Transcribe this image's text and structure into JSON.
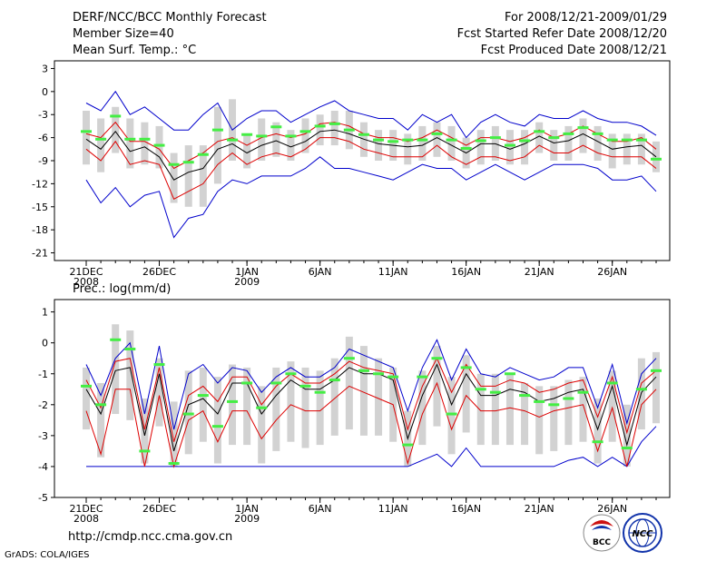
{
  "header": {
    "title": "DERF/NCC/BCC Monthly Forecast",
    "member_size": "Member Size=40",
    "variable": "Mean Surf. Temp.: °C",
    "forecast_period": "For 2008/12/21-2009/01/29",
    "started_refer": "Fcst Started Refer Date 2008/12/20",
    "produced": "Fcst Produced Date 2008/12/21"
  },
  "footer": {
    "url": "http://cmdp.ncc.cma.gov.cn",
    "credit": "GrADS: COLA/IGES",
    "logo_bcc": "BCC",
    "logo_ncc": "NCC"
  },
  "colors": {
    "box": "#d2d2d2",
    "mean": "#000000",
    "upper": "#0000cc",
    "lower": "#dd0000",
    "marker": "#44ee44"
  },
  "chart_data": [
    {
      "type": "box",
      "title": "Mean Surf. Temp.: °C",
      "ylim": [
        -22,
        4
      ],
      "yticks": [
        "3",
        "0",
        "-3",
        "-6",
        "-9",
        "-12",
        "-15",
        "-18",
        "-21"
      ],
      "xlabels": [
        {
          "day": 1,
          "label": "21DEC",
          "sub": "2008"
        },
        {
          "day": 6,
          "label": "26DEC",
          "sub": ""
        },
        {
          "day": 12,
          "label": "1JAN",
          "sub": "2009"
        },
        {
          "day": 17,
          "label": "6JAN",
          "sub": ""
        },
        {
          "day": 22,
          "label": "11JAN",
          "sub": ""
        },
        {
          "day": 27,
          "label": "16JAN",
          "sub": ""
        },
        {
          "day": 32,
          "label": "21JAN",
          "sub": ""
        },
        {
          "day": 37,
          "label": "26JAN",
          "sub": ""
        }
      ],
      "series": [
        {
          "name": "ensemble mean",
          "values": [
            -6.2,
            -7.5,
            -5.2,
            -7.8,
            -7.2,
            -8.5,
            -11.5,
            -10.5,
            -10,
            -7.5,
            -6.8,
            -8,
            -7,
            -6.4,
            -7.2,
            -6.5,
            -5.2,
            -5,
            -5.5,
            -6.2,
            -6.8,
            -7,
            -7.2,
            -7,
            -6,
            -7,
            -8,
            -6.8,
            -6.8,
            -7.5,
            -6.8,
            -5.8,
            -6.7,
            -6.4,
            -5.5,
            -6.5,
            -7.5,
            -7.2,
            -7,
            -8.5
          ]
        },
        {
          "name": "max",
          "values": [
            -1.5,
            -2.5,
            0,
            -3,
            -2,
            -3.5,
            -5,
            -5,
            -3,
            -1.5,
            -5,
            -3.5,
            -2.5,
            -2.5,
            -4,
            -3,
            -2,
            -1.2,
            -2.5,
            -3,
            -3.5,
            -3.5,
            -5,
            -3,
            -4,
            -3,
            -6,
            -4,
            -3,
            -4,
            -4.5,
            -3,
            -3.5,
            -3.5,
            -2.5,
            -3.5,
            -4,
            -4,
            -4.5,
            -5.7
          ]
        },
        {
          "name": "min",
          "values": [
            -11.5,
            -14.5,
            -12.5,
            -15,
            -13.5,
            -13,
            -19,
            -16.5,
            -16,
            -13,
            -11.5,
            -12,
            -11,
            -11,
            -11,
            -10,
            -8.5,
            -10,
            -10,
            -10.5,
            -11,
            -11.5,
            -10.5,
            -9.5,
            -10,
            -10,
            -11.5,
            -10.5,
            -9.5,
            -10.5,
            -11.5,
            -10.5,
            -9.5,
            -9.5,
            -9.5,
            -10,
            -11.5,
            -11.5,
            -11,
            -13
          ]
        },
        {
          "name": "lower",
          "values": [
            -7.5,
            -9,
            -6.5,
            -9.5,
            -9,
            -9.5,
            -14,
            -13,
            -12,
            -9.5,
            -8,
            -9.5,
            -8.5,
            -8,
            -8.5,
            -7.5,
            -6,
            -6,
            -6.5,
            -7.5,
            -8,
            -8.5,
            -8.5,
            -8.5,
            -7,
            -8.5,
            -9.5,
            -8.5,
            -8.5,
            -9,
            -8.5,
            -7,
            -8,
            -8,
            -7,
            -8,
            -8.5,
            -8.5,
            -8.5,
            -10
          ]
        },
        {
          "name": "upper",
          "values": [
            -5.5,
            -6,
            -4,
            -6.5,
            -6.5,
            -7.5,
            -10,
            -9,
            -8,
            -6.5,
            -6,
            -7,
            -6,
            -5.5,
            -6,
            -5.5,
            -4.2,
            -4,
            -4.5,
            -5.5,
            -6,
            -6,
            -6.5,
            -6,
            -5,
            -6,
            -7,
            -6,
            -6,
            -6.5,
            -6,
            -5,
            -6,
            -5.5,
            -4.5,
            -5.5,
            -6.5,
            -6.5,
            -6,
            -7.5
          ]
        },
        {
          "name": "box_high",
          "values": [
            -2.5,
            -3.5,
            -2,
            -3.5,
            -4,
            -4.5,
            -8,
            -7,
            -7,
            -2,
            -1,
            -5.5,
            -3.5,
            -4,
            -5,
            -3.5,
            -3,
            -2.5,
            -2.5,
            -4,
            -5,
            -5,
            -5.5,
            -4.5,
            -4,
            -4.5,
            -6,
            -5,
            -4.5,
            -5,
            -5,
            -4,
            -5,
            -4.5,
            -3.5,
            -4.5,
            -5.5,
            -5.5,
            -5.5,
            -6.5
          ]
        },
        {
          "name": "box_low",
          "values": [
            -9.5,
            -10.5,
            -8,
            -10,
            -9.5,
            -10,
            -14.5,
            -15,
            -15,
            -12,
            -9,
            -10,
            -9,
            -8.5,
            -9,
            -8,
            -7,
            -7,
            -7.5,
            -8.5,
            -9,
            -9,
            -9.5,
            -9,
            -8.5,
            -9,
            -10,
            -9.5,
            -9,
            -9.5,
            -9.5,
            -8,
            -9,
            -9,
            -8,
            -9,
            -10,
            -9.5,
            -9.5,
            -10.5
          ]
        },
        {
          "name": "observed marker",
          "values": [
            -5.2,
            -6.2,
            -3.2,
            -6.2,
            -6.2,
            -7,
            -9.5,
            -9.2,
            -8.2,
            -5,
            -6.3,
            -5.6,
            -5.8,
            -4.6,
            -5.8,
            -5.2,
            -4.5,
            -4.2,
            -5,
            -5.6,
            -6.3,
            -6.5,
            -6.3,
            -6.3,
            -5.5,
            -6.3,
            -7.4,
            -6.4,
            -6,
            -7,
            -6.4,
            -5.2,
            -6,
            -5.5,
            -4.7,
            -5.5,
            -6.3,
            -6.3,
            -6.3,
            -8.8
          ]
        }
      ]
    },
    {
      "type": "box",
      "title": "Prec.: log(mm/d)",
      "ylim": [
        -5,
        1.4
      ],
      "yticks": [
        "1",
        "0",
        "-1",
        "-2",
        "-3",
        "-4",
        "-5"
      ],
      "xlabels": [
        {
          "day": 1,
          "label": "21DEC",
          "sub": "2008"
        },
        {
          "day": 6,
          "label": "26DEC",
          "sub": ""
        },
        {
          "day": 12,
          "label": "1JAN",
          "sub": "2009"
        },
        {
          "day": 17,
          "label": "6JAN",
          "sub": ""
        },
        {
          "day": 22,
          "label": "11JAN",
          "sub": ""
        },
        {
          "day": 27,
          "label": "16JAN",
          "sub": ""
        },
        {
          "day": 32,
          "label": "21JAN",
          "sub": ""
        },
        {
          "day": 37,
          "label": "26JAN",
          "sub": ""
        }
      ],
      "series": [
        {
          "name": "ensemble mean",
          "values": [
            -1.5,
            -2.3,
            -0.9,
            -0.8,
            -3,
            -1,
            -3.5,
            -2,
            -1.8,
            -2.3,
            -1.3,
            -1.3,
            -2.3,
            -1.7,
            -1.2,
            -1.5,
            -1.5,
            -1.2,
            -0.8,
            -1,
            -1,
            -1.2,
            -3.1,
            -1.7,
            -0.7,
            -2,
            -1,
            -1.7,
            -1.7,
            -1.5,
            -1.6,
            -1.9,
            -1.8,
            -1.6,
            -1.5,
            -2.8,
            -1.4,
            -3.3,
            -1.6,
            -1.1
          ]
        },
        {
          "name": "max",
          "values": [
            -0.7,
            -1.7,
            -0.5,
            0,
            -2.3,
            -0.1,
            -2.8,
            -1,
            -0.7,
            -1.3,
            -0.8,
            -0.9,
            -1.6,
            -1.1,
            -0.8,
            -1.1,
            -1.1,
            -0.8,
            -0.2,
            -0.4,
            -0.6,
            -0.8,
            -2.2,
            -0.8,
            0.1,
            -1.2,
            -0.2,
            -1,
            -1.1,
            -0.8,
            -1,
            -1.2,
            -1.1,
            -0.8,
            -0.8,
            -2.1,
            -0.7,
            -2.6,
            -1,
            -0.5
          ]
        },
        {
          "name": "min",
          "values": [
            -4,
            -4,
            -4,
            -4,
            -4,
            -4,
            -4,
            -4,
            -4,
            -4,
            -4,
            -4,
            -4,
            -4,
            -4,
            -4,
            -4,
            -4,
            -4,
            -4,
            -4,
            -4,
            -4,
            -3.8,
            -3.6,
            -4,
            -3.4,
            -4,
            -4,
            -4,
            -4,
            -4,
            -4,
            -3.8,
            -3.7,
            -4,
            -3.7,
            -4,
            -3.2,
            -2.7
          ]
        },
        {
          "name": "lower",
          "values": [
            -2.2,
            -3.6,
            -1.5,
            -1.5,
            -4,
            -1.7,
            -4,
            -2.5,
            -2.2,
            -3.2,
            -2.2,
            -2.2,
            -3.1,
            -2.5,
            -2,
            -2.2,
            -2.2,
            -1.8,
            -1.4,
            -1.6,
            -1.8,
            -2,
            -3.9,
            -2.3,
            -1.3,
            -2.8,
            -1.7,
            -2.2,
            -2.2,
            -2.1,
            -2.2,
            -2.4,
            -2.2,
            -2.1,
            -2,
            -3.5,
            -2.1,
            -4,
            -2,
            -1.5
          ]
        },
        {
          "name": "upper",
          "values": [
            -1.2,
            -2.1,
            -0.6,
            -0.5,
            -2.8,
            -0.8,
            -3.2,
            -1.7,
            -1.4,
            -1.9,
            -1.1,
            -1.1,
            -2,
            -1.4,
            -1,
            -1.3,
            -1.3,
            -1,
            -0.6,
            -0.8,
            -0.9,
            -1,
            -2.8,
            -1.4,
            -0.5,
            -1.6,
            -0.7,
            -1.4,
            -1.4,
            -1.2,
            -1.3,
            -1.6,
            -1.5,
            -1.3,
            -1.2,
            -2.4,
            -1.1,
            -2.9,
            -1.3,
            -0.9
          ]
        },
        {
          "name": "box_high",
          "values": [
            -0.8,
            -1.3,
            0.6,
            0.4,
            -1.8,
            -0.5,
            -1.9,
            -0.9,
            -0.8,
            -1.1,
            -0.7,
            -0.8,
            -1.4,
            -0.8,
            -0.6,
            -0.8,
            -0.9,
            -0.5,
            0.2,
            -0.1,
            -0.5,
            -0.8,
            -2.2,
            -0.9,
            -0.1,
            -1.1,
            -0.4,
            -1,
            -1,
            -1,
            -1.3,
            -1.4,
            -1.4,
            -1.2,
            -1.1,
            -1.8,
            -0.9,
            -2,
            -0.5,
            -0.3
          ]
        },
        {
          "name": "box_low",
          "values": [
            -2.8,
            -3.7,
            -2.3,
            -2.5,
            -3.9,
            -2.7,
            -4,
            -3.6,
            -3.2,
            -3.9,
            -3.3,
            -3.3,
            -3.9,
            -3.5,
            -3.2,
            -3.4,
            -3.3,
            -3,
            -2.8,
            -3,
            -3,
            -3.2,
            -4,
            -3.3,
            -2.7,
            -3.6,
            -2.9,
            -3.3,
            -3.3,
            -3.3,
            -3.3,
            -3.6,
            -3.5,
            -3.3,
            -3.2,
            -3.9,
            -3.2,
            -4,
            -2.8,
            -2.6
          ]
        },
        {
          "name": "observed marker",
          "values": [
            -1.4,
            -2,
            0.1,
            -0.2,
            -3.5,
            -0.7,
            -3.9,
            -2.3,
            -1.7,
            -2.7,
            -1.9,
            -1.3,
            -2.1,
            -1.3,
            -1,
            -1.4,
            -1.6,
            -1.2,
            -0.5,
            -0.9,
            -1,
            -1.1,
            -3.3,
            -1.1,
            -0.5,
            -2.3,
            -0.8,
            -1.5,
            -1.6,
            -1,
            -1.7,
            -1.9,
            -2,
            -1.8,
            -1.6,
            -3.2,
            -1.3,
            -3.4,
            -1.5,
            -0.9
          ]
        }
      ]
    }
  ]
}
